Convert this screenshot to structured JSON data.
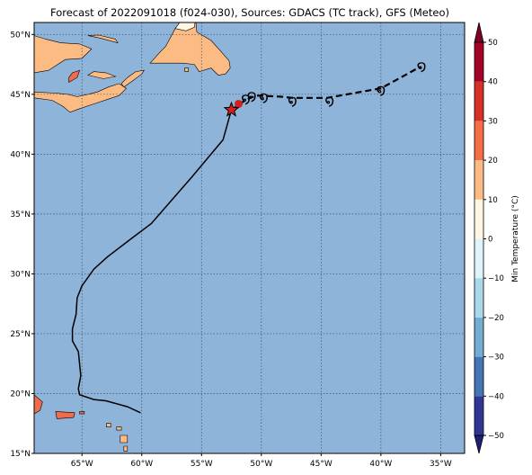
{
  "title": "Forecast of 2022091018 (f024-030), Sources: GDACS (TC track), GFS (Meteo)",
  "map": {
    "extent": {
      "lon": [
        -69,
        -33
      ],
      "lat": [
        15,
        51
      ]
    },
    "ocean_color": "#8fb4d9",
    "grid_color": "#3a4f6e",
    "x_ticks": [
      {
        "value": -65,
        "label": "65°W"
      },
      {
        "value": -60,
        "label": "60°W"
      },
      {
        "value": -55,
        "label": "55°W"
      },
      {
        "value": -50,
        "label": "50°W"
      },
      {
        "value": -45,
        "label": "45°W"
      },
      {
        "value": -40,
        "label": "40°W"
      },
      {
        "value": -35,
        "label": "35°W"
      }
    ],
    "y_ticks": [
      {
        "value": 15,
        "label": "15°N"
      },
      {
        "value": 20,
        "label": "20°N"
      },
      {
        "value": 25,
        "label": "25°N"
      },
      {
        "value": 30,
        "label": "30°N"
      },
      {
        "value": 35,
        "label": "35°N"
      },
      {
        "value": 40,
        "label": "40°N"
      },
      {
        "value": 45,
        "label": "45°N"
      },
      {
        "value": 50,
        "label": "50°N"
      }
    ]
  },
  "track": {
    "past": [
      [
        -60.1,
        18.4
      ],
      [
        -61.2,
        18.9
      ],
      [
        -63.0,
        19.4
      ],
      [
        -64.0,
        19.5
      ],
      [
        -65.2,
        19.9
      ],
      [
        -65.3,
        20.4
      ],
      [
        -65.1,
        21.5
      ],
      [
        -65.3,
        23.5
      ],
      [
        -65.8,
        24.4
      ],
      [
        -65.8,
        25.4
      ],
      [
        -65.5,
        26.6
      ],
      [
        -65.4,
        28.0
      ],
      [
        -65.0,
        29.0
      ],
      [
        -64.0,
        30.4
      ],
      [
        -62.9,
        31.4
      ],
      [
        -60.8,
        33.0
      ],
      [
        -59.2,
        34.2
      ],
      [
        -55.8,
        38.1
      ],
      [
        -53.2,
        41.2
      ],
      [
        -52.5,
        43.7
      ]
    ],
    "current": [
      -52.5,
      43.7
    ],
    "forecast": [
      [
        -52.5,
        43.7
      ],
      [
        -51.2,
        44.6
      ],
      [
        -50.4,
        44.9
      ],
      [
        -48.3,
        44.8
      ],
      [
        -47.4,
        44.7
      ],
      [
        -44.5,
        44.7
      ],
      [
        -40.0,
        45.5
      ],
      [
        -36.7,
        47.3
      ]
    ],
    "cyclone_symbol_positions": [
      [
        -51.3,
        44.7
      ],
      [
        -50.8,
        44.9
      ],
      [
        -49.8,
        44.8
      ],
      [
        -47.4,
        44.5
      ],
      [
        -44.3,
        44.5
      ],
      [
        -40.0,
        45.4
      ],
      [
        -36.6,
        47.4
      ]
    ],
    "cyclone_symbol": "໑",
    "marker_color": "#d61f1f"
  },
  "regions": [
    {
      "name": "nova-scotia",
      "fill": "#fdbb84",
      "points": [
        [
          -69,
          45.2
        ],
        [
          -67.2,
          45.1
        ],
        [
          -66.2,
          45.0
        ],
        [
          -65.4,
          44.8
        ],
        [
          -64.5,
          45.0
        ],
        [
          -63.7,
          45.2
        ],
        [
          -62.8,
          45.6
        ],
        [
          -61.9,
          45.9
        ],
        [
          -61.3,
          45.5
        ],
        [
          -61.9,
          44.9
        ],
        [
          -62.8,
          44.6
        ],
        [
          -64.0,
          44.2
        ],
        [
          -65.2,
          43.8
        ],
        [
          -66.0,
          43.5
        ],
        [
          -66.6,
          44.0
        ],
        [
          -67.5,
          44.5
        ],
        [
          -69,
          44.7
        ]
      ]
    },
    {
      "name": "new-brunswick-quebec",
      "fill": "#fdbb84",
      "points": [
        [
          -69,
          51
        ],
        [
          -69,
          46.8
        ],
        [
          -67.8,
          47.0
        ],
        [
          -66.4,
          47.9
        ],
        [
          -65.0,
          48.0
        ],
        [
          -64.2,
          48.8
        ],
        [
          -65.2,
          49.2
        ],
        [
          -66.8,
          49.3
        ],
        [
          -68.0,
          49.6
        ],
        [
          -69,
          49.9
        ]
      ]
    },
    {
      "name": "warm-patch",
      "fill": "#f16b4c",
      "points": [
        [
          -66.1,
          46.0
        ],
        [
          -65.4,
          46.4
        ],
        [
          -65.2,
          47.0
        ],
        [
          -65.8,
          46.8
        ],
        [
          -66.1,
          46.4
        ]
      ]
    },
    {
      "name": "cape-breton",
      "fill": "#fdbb84",
      "points": [
        [
          -61.5,
          45.6
        ],
        [
          -60.8,
          46.1
        ],
        [
          -60.0,
          46.7
        ],
        [
          -59.8,
          47.0
        ],
        [
          -60.5,
          46.9
        ],
        [
          -61.2,
          46.4
        ],
        [
          -61.7,
          45.9
        ]
      ]
    },
    {
      "name": "pei",
      "fill": "#fdbb84",
      "points": [
        [
          -64.5,
          46.6
        ],
        [
          -63.2,
          46.3
        ],
        [
          -62.2,
          46.5
        ],
        [
          -63.0,
          46.8
        ],
        [
          -64.0,
          46.9
        ]
      ]
    },
    {
      "name": "anticosti",
      "fill": "#fdbb84",
      "points": [
        [
          -64.5,
          49.9
        ],
        [
          -63.5,
          49.7
        ],
        [
          -62.0,
          49.3
        ],
        [
          -62.2,
          49.6
        ],
        [
          -63.6,
          49.95
        ]
      ]
    },
    {
      "name": "newfoundland",
      "fill": "#fdbb84",
      "points": [
        [
          -59.3,
          47.6
        ],
        [
          -58.5,
          48.5
        ],
        [
          -58.0,
          49.0
        ],
        [
          -57.2,
          50.5
        ],
        [
          -56.5,
          51.3
        ],
        [
          -55.5,
          51.3
        ],
        [
          -55.4,
          50.2
        ],
        [
          -54.2,
          49.5
        ],
        [
          -53.4,
          48.6
        ],
        [
          -52.7,
          47.8
        ],
        [
          -52.6,
          47.2
        ],
        [
          -53.0,
          46.7
        ],
        [
          -53.6,
          46.6
        ],
        [
          -54.2,
          47.2
        ],
        [
          -55.2,
          46.9
        ],
        [
          -55.6,
          47.5
        ],
        [
          -56.6,
          47.6
        ],
        [
          -58.3,
          47.6
        ]
      ]
    },
    {
      "name": "newfoundland-north-pale",
      "fill": "#fff7e3",
      "points": [
        [
          -57.2,
          50.5
        ],
        [
          -56.6,
          51.3
        ],
        [
          -55.5,
          51.3
        ],
        [
          -55.6,
          50.6
        ],
        [
          -56.3,
          50.3
        ]
      ]
    },
    {
      "name": "st-pierre",
      "fill": "#fdbb84",
      "points": [
        [
          -56.4,
          47.2
        ],
        [
          -56.1,
          47.2
        ],
        [
          -56.1,
          46.9
        ],
        [
          -56.4,
          46.9
        ]
      ]
    },
    {
      "name": "hispaniola",
      "fill": "#f16b4c",
      "points": [
        [
          -69,
          19.9
        ],
        [
          -68.3,
          19.3
        ],
        [
          -68.5,
          18.6
        ],
        [
          -69,
          18.3
        ]
      ]
    },
    {
      "name": "puerto-rico",
      "fill": "#f16b4c",
      "points": [
        [
          -67.2,
          18.5
        ],
        [
          -65.6,
          18.4
        ],
        [
          -65.7,
          18.0
        ],
        [
          -67.1,
          17.9
        ]
      ]
    },
    {
      "name": "virgin-islands",
      "fill": "#f16b4c",
      "points": [
        [
          -65.2,
          18.5
        ],
        [
          -64.8,
          18.5
        ],
        [
          -64.8,
          18.3
        ],
        [
          -65.2,
          18.3
        ]
      ]
    },
    {
      "name": "antigua",
      "fill": "#fdbb84",
      "points": [
        [
          -62.1,
          17.2
        ],
        [
          -61.7,
          17.2
        ],
        [
          -61.7,
          16.95
        ],
        [
          -62.1,
          16.95
        ]
      ]
    },
    {
      "name": "guadeloupe",
      "fill": "#fdbb84",
      "points": [
        [
          -61.8,
          16.5
        ],
        [
          -61.2,
          16.5
        ],
        [
          -61.2,
          15.9
        ],
        [
          -61.8,
          15.9
        ]
      ]
    },
    {
      "name": "st-kitts",
      "fill": "#fdbb84",
      "points": [
        [
          -62.95,
          17.5
        ],
        [
          -62.6,
          17.5
        ],
        [
          -62.6,
          17.2
        ],
        [
          -62.95,
          17.2
        ]
      ]
    },
    {
      "name": "dominica",
      "fill": "#fdbb84",
      "points": [
        [
          -61.5,
          15.6
        ],
        [
          -61.2,
          15.6
        ],
        [
          -61.2,
          15.2
        ],
        [
          -61.5,
          15.2
        ]
      ]
    }
  ],
  "colorbar": {
    "label": "Min Temperature (°C)",
    "min": -50,
    "max": 50,
    "ticks": [
      {
        "value": 50,
        "label": "50"
      },
      {
        "value": 40,
        "label": "40"
      },
      {
        "value": 30,
        "label": "30"
      },
      {
        "value": 20,
        "label": "20"
      },
      {
        "value": 10,
        "label": "10"
      },
      {
        "value": 0,
        "label": "0"
      },
      {
        "value": -10,
        "label": "−10"
      },
      {
        "value": -20,
        "label": "−20"
      },
      {
        "value": -30,
        "label": "−30"
      },
      {
        "value": -40,
        "label": "−40"
      },
      {
        "value": -50,
        "label": "−50"
      }
    ],
    "bands": [
      {
        "from": -50,
        "to": -40,
        "color": "#313695"
      },
      {
        "from": -40,
        "to": -30,
        "color": "#4575b4"
      },
      {
        "from": -30,
        "to": -20,
        "color": "#74add1"
      },
      {
        "from": -20,
        "to": -10,
        "color": "#abd9e9"
      },
      {
        "from": -10,
        "to": 0,
        "color": "#e0f3f8"
      },
      {
        "from": 0,
        "to": 10,
        "color": "#fff7e3"
      },
      {
        "from": 10,
        "to": 20,
        "color": "#fdbb84"
      },
      {
        "from": 20,
        "to": 30,
        "color": "#f46d43"
      },
      {
        "from": 30,
        "to": 40,
        "color": "#d73027"
      },
      {
        "from": 40,
        "to": 50,
        "color": "#a50026"
      }
    ],
    "extend_low_color": "#1f1f7a",
    "extend_high_color": "#800026"
  }
}
